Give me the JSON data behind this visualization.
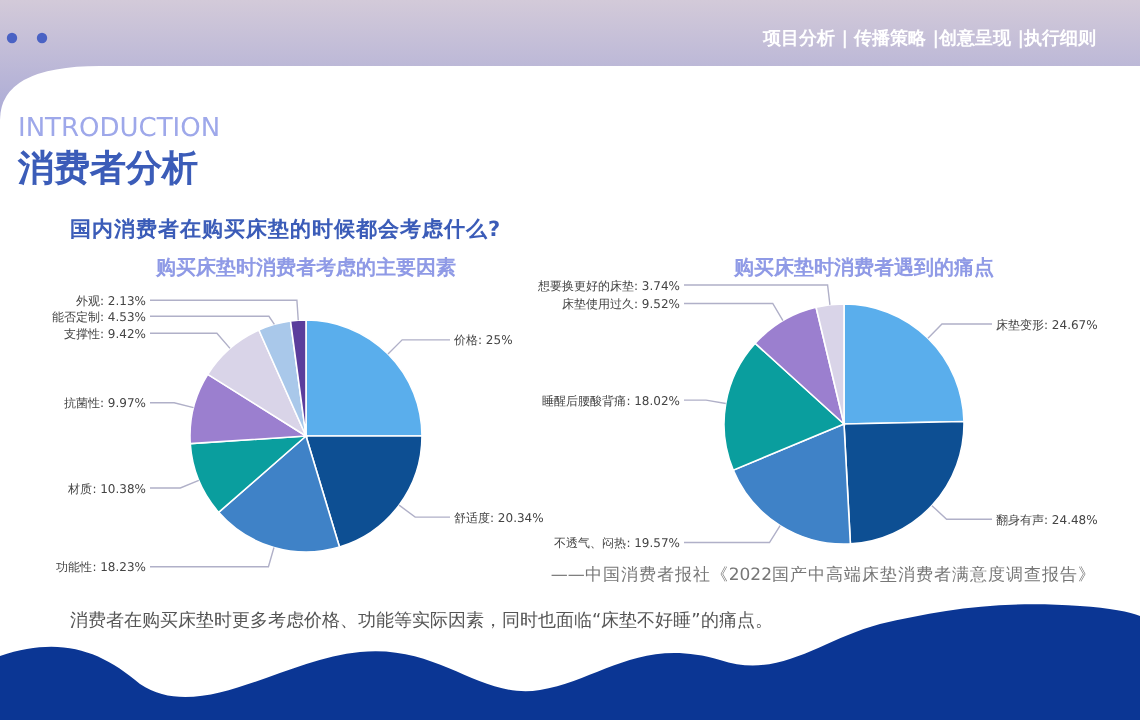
{
  "chart_data": [
    {
      "type": "pie",
      "title": "购买床垫时消费者考虑的主要因素",
      "categories": [
        "价格",
        "舒适度",
        "功能性",
        "材质",
        "抗菌性",
        "支撑性",
        "能否定制",
        "外观"
      ],
      "values": [
        25,
        20.34,
        18.23,
        10.38,
        9.97,
        9.42,
        4.53,
        2.13
      ],
      "value_labels": [
        "25%",
        "20.34%",
        "18.23%",
        "10.38%",
        "9.97%",
        "9.42%",
        "4.53%",
        "2.13%"
      ],
      "colors": [
        "#5aaeec",
        "#0d4f93",
        "#3f82c7",
        "#0a9e9e",
        "#9b7fcf",
        "#d9d4e8",
        "#a9c8ea",
        "#5b3d9c"
      ],
      "annotations": [
        "项目分析 | 传播策略 |创意呈现 |执行细则",
        "INTRODUCTION",
        "消费者分析",
        "国内消费者在购买床垫的时候都会考虑什么?",
        "——中国消费者报社《2022国产中高端床垫消费者满意度调查报告》",
        "消费者在购买床垫时更多考虑价格、功能等实际因素，同时也面临“床垫不好睡”的痛点。"
      ]
    },
    {
      "type": "pie",
      "title": "购买床垫时消费者遇到的痛点",
      "categories": [
        "床垫变形",
        "翻身有声",
        "不透气、闷热",
        "睡醒后腰酸背痛",
        "床垫使用过久",
        "想要换更好的床垫"
      ],
      "values": [
        24.67,
        24.48,
        19.57,
        18.02,
        9.52,
        3.74
      ],
      "value_labels": [
        "24.67%",
        "24.48%",
        "19.57%",
        "18.02%",
        "9.52%",
        "3.74%"
      ],
      "colors": [
        "#5aaeec",
        "#0d4f93",
        "#3f82c7",
        "#0a9e9e",
        "#9b7fcf",
        "#d9d4e8"
      ]
    }
  ]
}
